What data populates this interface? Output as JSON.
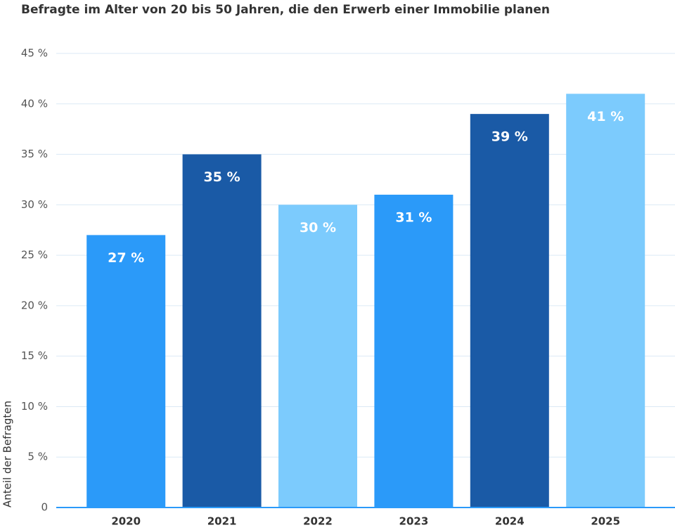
{
  "chart_data": {
    "type": "bar",
    "title": "Befragte im Alter von 20 bis 50 Jahren, die den Erwerb einer Immobilie planen",
    "y_label": "Anteil der Befragten",
    "categories": [
      "2020",
      "2021",
      "2022",
      "2023",
      "2024",
      "2025"
    ],
    "values": [
      27,
      35,
      30,
      31,
      39,
      41
    ],
    "value_labels": [
      "27 %",
      "35 %",
      "30 %",
      "31 %",
      "39 %",
      "41 %"
    ],
    "colors": [
      "#2b9af9",
      "#1a5aa6",
      "#7ccbfd",
      "#2b9af9",
      "#1a5aa6",
      "#7ccbfd"
    ],
    "ylim": [
      0,
      45
    ],
    "yticks": [
      0,
      {
        "value": 5,
        "label": "5 %"
      },
      {
        "value": 10,
        "label": "10 %"
      },
      {
        "value": 15,
        "label": "15 %"
      },
      {
        "value": 20,
        "label": "20 %"
      },
      {
        "value": 25,
        "label": "25 %"
      },
      {
        "value": 30,
        "label": "30 %"
      },
      {
        "value": 35,
        "label": "35 %"
      },
      {
        "value": 40,
        "label": "40 %"
      },
      {
        "value": 45,
        "label": "45 %"
      }
    ],
    "grid": true
  }
}
